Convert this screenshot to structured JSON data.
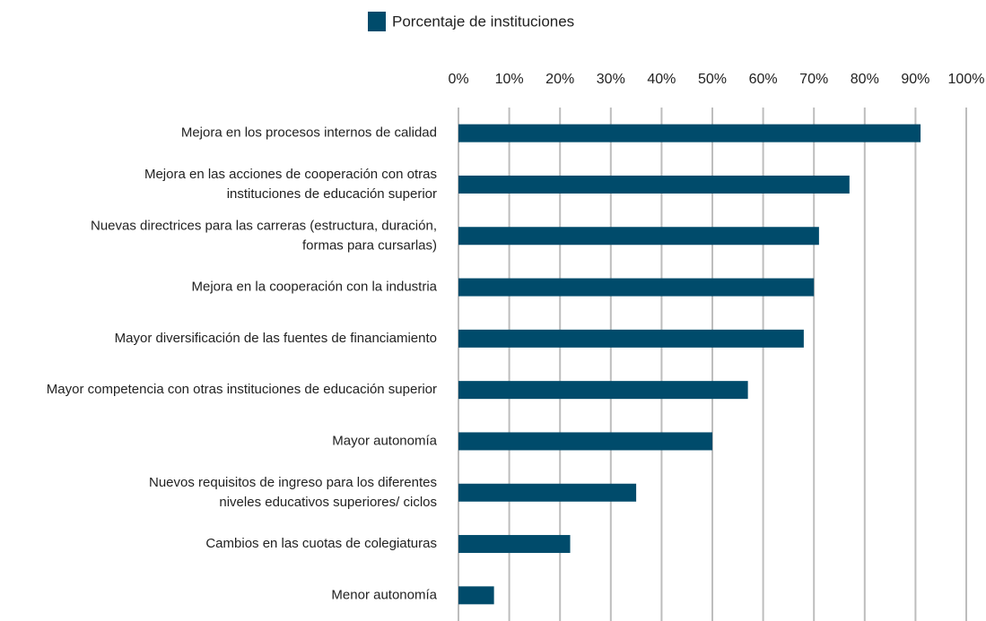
{
  "chart_data": {
    "type": "bar",
    "orientation": "horizontal",
    "categories": [
      "Mejora en los procesos internos de calidad",
      "Mejora en las acciones de cooperación con otras\ninstituciones de educación superior",
      "Nuevas directrices para las carreras (estructura, duración,\nformas para cursarlas)",
      "Mejora en la cooperación con la industria",
      "Mayor diversificación de las fuentes de financiamiento",
      "Mayor competencia con otras instituciones de educación superior",
      "Mayor autonomía",
      "Nuevos requisitos de ingreso para los diferentes\nniveles educativos superiores/ ciclos",
      "Cambios en las cuotas de colegiaturas",
      "Menor autonomía"
    ],
    "series": [
      {
        "name": "Porcentaje de instituciones",
        "color": "#004b6b",
        "values": [
          91,
          77,
          71,
          70,
          68,
          57,
          50,
          35,
          22,
          7
        ]
      }
    ],
    "xlim": [
      0,
      100
    ],
    "xticks": [
      {
        "value": 0,
        "label": "0%"
      },
      {
        "value": 10,
        "label": "10%"
      },
      {
        "value": 20,
        "label": "20%"
      },
      {
        "value": 30,
        "label": "30%"
      },
      {
        "value": 40,
        "label": "40%"
      },
      {
        "value": 50,
        "label": "50%"
      },
      {
        "value": 60,
        "label": "60%"
      },
      {
        "value": 70,
        "label": "70%"
      },
      {
        "value": 80,
        "label": "80%"
      },
      {
        "value": 90,
        "label": "90%"
      },
      {
        "value": 100,
        "label": "100%"
      }
    ],
    "grid": true,
    "legend": "top"
  }
}
